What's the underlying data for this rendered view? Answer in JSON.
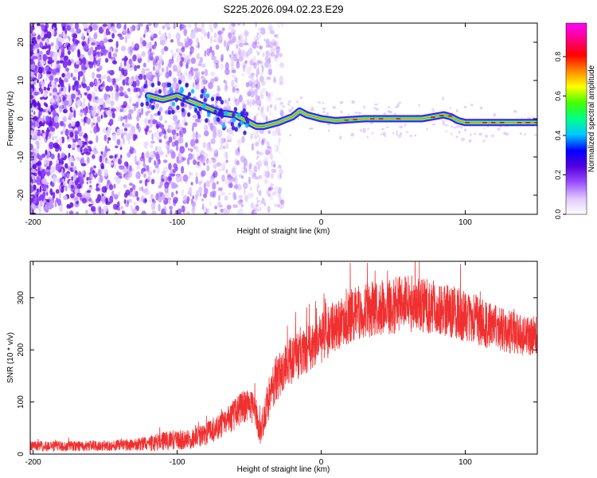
{
  "figure_title": "S225.2026.094.02.23.E29",
  "chart_data": [
    {
      "type": "heatmap",
      "title": "S225.2026.094.02.23.E29",
      "xlabel": "Height of straight line (km)",
      "ylabel": "Frequency (Hz)",
      "xlim": [
        -202,
        150
      ],
      "ylim": [
        -25,
        25
      ],
      "x_ticks": [
        -200,
        -100,
        0,
        100
      ],
      "x_tick_labels": [
        "-200",
        "-100",
        "0",
        "100"
      ],
      "y_ticks": [
        -20,
        -10,
        0,
        10,
        20
      ],
      "y_tick_labels": [
        "-20",
        "-10",
        "0",
        "10",
        "20"
      ],
      "colorbar": {
        "label": "Normalized spectral amplitude",
        "range": [
          0,
          0.97
        ],
        "ticks": [
          0,
          0.2,
          0.4,
          0.6,
          0.8
        ],
        "tick_labels": [
          "0.0",
          "0.2",
          "0.4",
          "0.6",
          "0.8"
        ],
        "colormap": [
          "#ffffff",
          "#e0c8ff",
          "#9a50ff",
          "#5500dd",
          "#0000ff",
          "#00c8ff",
          "#00ff88",
          "#44ff00",
          "#ffff00",
          "#ff8800",
          "#ff0000",
          "#ff0088",
          "#ff00ff"
        ]
      },
      "ridge": {
        "description": "dominant spectral line",
        "x": [
          -120,
          -110,
          -100,
          -90,
          -80,
          -70,
          -60,
          -50,
          -45,
          -40,
          -30,
          -20,
          -15,
          -10,
          0,
          10,
          30,
          50,
          70,
          85,
          90,
          95,
          100,
          110,
          120,
          130,
          150
        ],
        "y": [
          6,
          5,
          6,
          4.5,
          3,
          1.5,
          1,
          -1,
          -2,
          -2,
          -1,
          0.5,
          2,
          1,
          0,
          -0.5,
          0,
          0,
          0,
          1,
          0.5,
          -0.5,
          -1,
          -1,
          -1,
          -1,
          -1
        ]
      }
    },
    {
      "type": "line",
      "xlabel": "Height of straight line (km)",
      "ylabel": "SNR (10 * v/v)",
      "xlim": [
        -202,
        150
      ],
      "ylim": [
        0,
        370
      ],
      "x_ticks": [
        -200,
        -100,
        0,
        100
      ],
      "x_tick_labels": [
        "-200",
        "-100",
        "0",
        "100"
      ],
      "y_ticks": [
        0,
        100,
        200,
        300
      ],
      "y_tick_labels": [
        "0",
        "100",
        "200",
        "300"
      ],
      "color": "#f03030",
      "series": [
        {
          "name": "SNR",
          "x": [
            -202,
            -190,
            -180,
            -170,
            -160,
            -150,
            -140,
            -130,
            -120,
            -110,
            -100,
            -90,
            -80,
            -70,
            -60,
            -55,
            -50,
            -45,
            -42,
            -40,
            -35,
            -30,
            -25,
            -20,
            -15,
            -10,
            -5,
            0,
            5,
            10,
            15,
            20,
            25,
            30,
            40,
            50,
            60,
            70,
            80,
            90,
            100,
            110,
            120,
            130,
            140,
            150
          ],
          "mean": [
            15,
            15,
            15,
            15,
            16,
            16,
            17,
            18,
            20,
            25,
            28,
            28,
            38,
            55,
            75,
            90,
            95,
            75,
            40,
            70,
            120,
            150,
            170,
            180,
            190,
            200,
            210,
            220,
            235,
            245,
            255,
            265,
            270,
            275,
            280,
            285,
            290,
            285,
            280,
            275,
            265,
            255,
            245,
            235,
            228,
            225
          ],
          "spread": [
            10,
            10,
            10,
            10,
            10,
            10,
            11,
            12,
            15,
            18,
            20,
            18,
            22,
            25,
            30,
            30,
            32,
            30,
            25,
            35,
            45,
            45,
            45,
            45,
            45,
            45,
            45,
            48,
            50,
            50,
            50,
            52,
            52,
            52,
            55,
            55,
            55,
            55,
            52,
            52,
            50,
            48,
            45,
            42,
            40,
            38
          ]
        }
      ]
    }
  ]
}
